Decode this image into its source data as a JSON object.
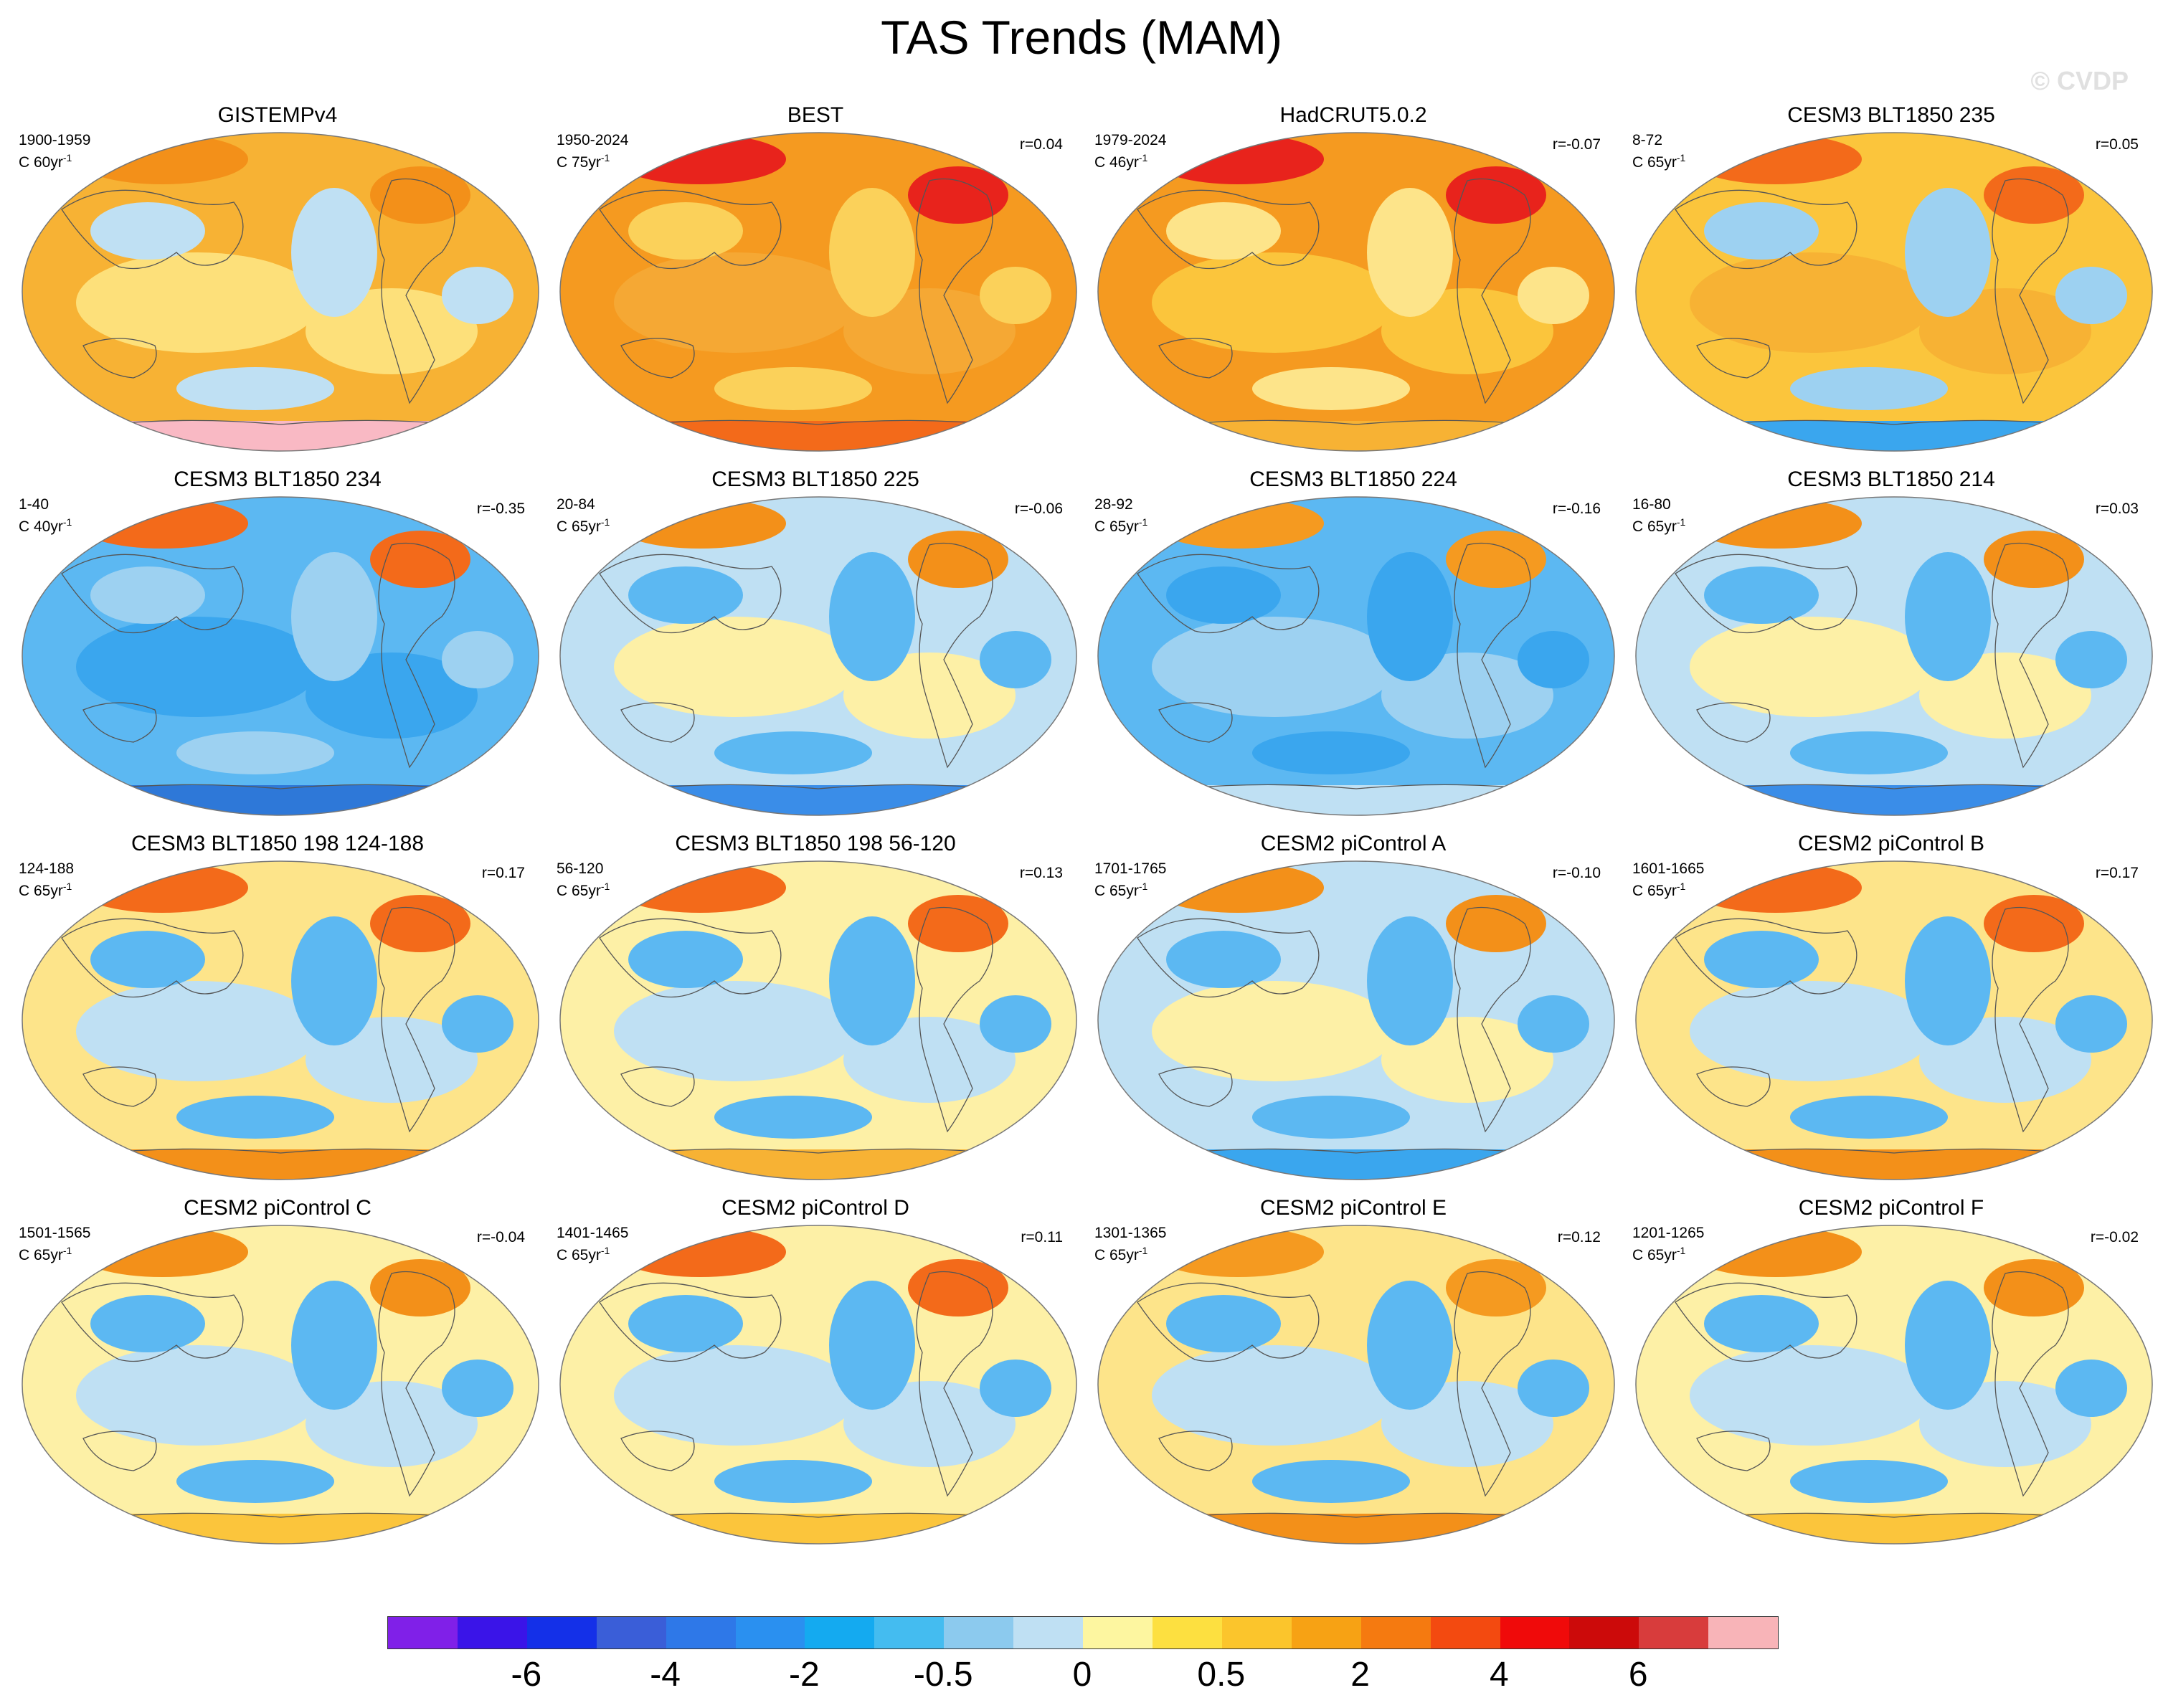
{
  "title": "TAS Trends (MAM)",
  "watermark": "© CVDP",
  "panels": [
    {
      "name": "GISTEMPv4",
      "years": "1900-1959",
      "units": "C 60yr",
      "r": "",
      "base": "#f7b234",
      "ocean": "#fde07a",
      "cool": "#bfe0f3",
      "ant": "#f9b9c4",
      "warm": "#f39019"
    },
    {
      "name": "BEST",
      "years": "1950-2024",
      "units": "C 75yr",
      "r": "r=0.04",
      "base": "#f59a20",
      "ocean": "#f5a834",
      "cool": "#fbd15a",
      "ant": "#f36a1a",
      "warm": "#e8231c"
    },
    {
      "name": "HadCRUT5.0.2",
      "years": "1979-2024",
      "units": "C 46yr",
      "r": "r=-0.07",
      "base": "#f59a20",
      "ocean": "#fbc53c",
      "cool": "#fde48a",
      "ant": "#f7b234",
      "warm": "#e8231c"
    },
    {
      "name": "CESM3 BLT1850 235",
      "years": "8-72",
      "units": "C 65yr",
      "r": "r=0.05",
      "base": "#fbc53c",
      "ocean": "#f7b234",
      "cool": "#9dd1f1",
      "ant": "#3aa6ee",
      "warm": "#f36a1a"
    },
    {
      "name": "CESM3 BLT1850 234",
      "years": "1-40",
      "units": "C 40yr",
      "r": "r=-0.35",
      "base": "#5cb8f2",
      "ocean": "#3aa6ee",
      "cool": "#9dd1f1",
      "ant": "#2e78d8",
      "warm": "#f36a1a"
    },
    {
      "name": "CESM3 BLT1850 225",
      "years": "20-84",
      "units": "C 65yr",
      "r": "r=-0.06",
      "base": "#bfe0f3",
      "ocean": "#fdf0a6",
      "cool": "#5cb8f2",
      "ant": "#3a8de8",
      "warm": "#f39019"
    },
    {
      "name": "CESM3 BLT1850 224",
      "years": "28-92",
      "units": "C 65yr",
      "r": "r=-0.16",
      "base": "#5cb8f2",
      "ocean": "#9dd1f1",
      "cool": "#3aa6ee",
      "ant": "#bfe0f3",
      "warm": "#f59a20"
    },
    {
      "name": "CESM3 BLT1850 214",
      "years": "16-80",
      "units": "C 65yr",
      "r": "r=0.03",
      "base": "#bfe0f3",
      "ocean": "#fdf0a6",
      "cool": "#5cb8f2",
      "ant": "#3a8de8",
      "warm": "#f39019"
    },
    {
      "name": "CESM3 BLT1850 198 124-188",
      "years": "124-188",
      "units": "C 65yr",
      "r": "r=0.17",
      "base": "#fde48a",
      "ocean": "#bfe0f3",
      "cool": "#5cb8f2",
      "ant": "#f39019",
      "warm": "#f36a1a"
    },
    {
      "name": "CESM3 BLT1850 198 56-120",
      "years": "56-120",
      "units": "C 65yr",
      "r": "r=0.13",
      "base": "#fdf0a6",
      "ocean": "#bfe0f3",
      "cool": "#5cb8f2",
      "ant": "#f7b234",
      "warm": "#f36a1a"
    },
    {
      "name": "CESM2 piControl A",
      "years": "1701-1765",
      "units": "C 65yr",
      "r": "r=-0.10",
      "base": "#bfe0f3",
      "ocean": "#fdf0a6",
      "cool": "#5cb8f2",
      "ant": "#3aa6ee",
      "warm": "#f39019"
    },
    {
      "name": "CESM2 piControl B",
      "years": "1601-1665",
      "units": "C 65yr",
      "r": "r=0.17",
      "base": "#fde48a",
      "ocean": "#bfe0f3",
      "cool": "#5cb8f2",
      "ant": "#f39019",
      "warm": "#f36a1a"
    },
    {
      "name": "CESM2 piControl C",
      "years": "1501-1565",
      "units": "C 65yr",
      "r": "r=-0.04",
      "base": "#fdf0a6",
      "ocean": "#bfe0f3",
      "cool": "#5cb8f2",
      "ant": "#fbc53c",
      "warm": "#f39019"
    },
    {
      "name": "CESM2 piControl D",
      "years": "1401-1465",
      "units": "C 65yr",
      "r": "r=0.11",
      "base": "#fdf0a6",
      "ocean": "#bfe0f3",
      "cool": "#5cb8f2",
      "ant": "#fbc53c",
      "warm": "#f36a1a"
    },
    {
      "name": "CESM2 piControl E",
      "years": "1301-1365",
      "units": "C 65yr",
      "r": "r=0.12",
      "base": "#fde48a",
      "ocean": "#bfe0f3",
      "cool": "#5cb8f2",
      "ant": "#f39019",
      "warm": "#f59a20"
    },
    {
      "name": "CESM2 piControl F",
      "years": "1201-1265",
      "units": "C 65yr",
      "r": "r=-0.02",
      "base": "#fdf0a6",
      "ocean": "#bfe0f3",
      "cool": "#5cb8f2",
      "ant": "#fbc53c",
      "warm": "#f39019"
    }
  ],
  "unit_superscript": "-1",
  "colorbar": {
    "colors": [
      "#8020e8",
      "#3a14e8",
      "#1430e8",
      "#3a5ed8",
      "#2e78e8",
      "#2a90f0",
      "#14aaf0",
      "#44bcf0",
      "#8ccaee",
      "#bfe0f3",
      "#fdf6a0",
      "#fde040",
      "#fbc52c",
      "#f7a214",
      "#f57a10",
      "#f34a10",
      "#f00a0a",
      "#cc0a0a",
      "#d83c3c",
      "#f8b4b8"
    ],
    "tick_labels": [
      "-6",
      "-4",
      "-2",
      "-0.5",
      "0",
      "0.5",
      "2",
      "4",
      "6"
    ]
  }
}
